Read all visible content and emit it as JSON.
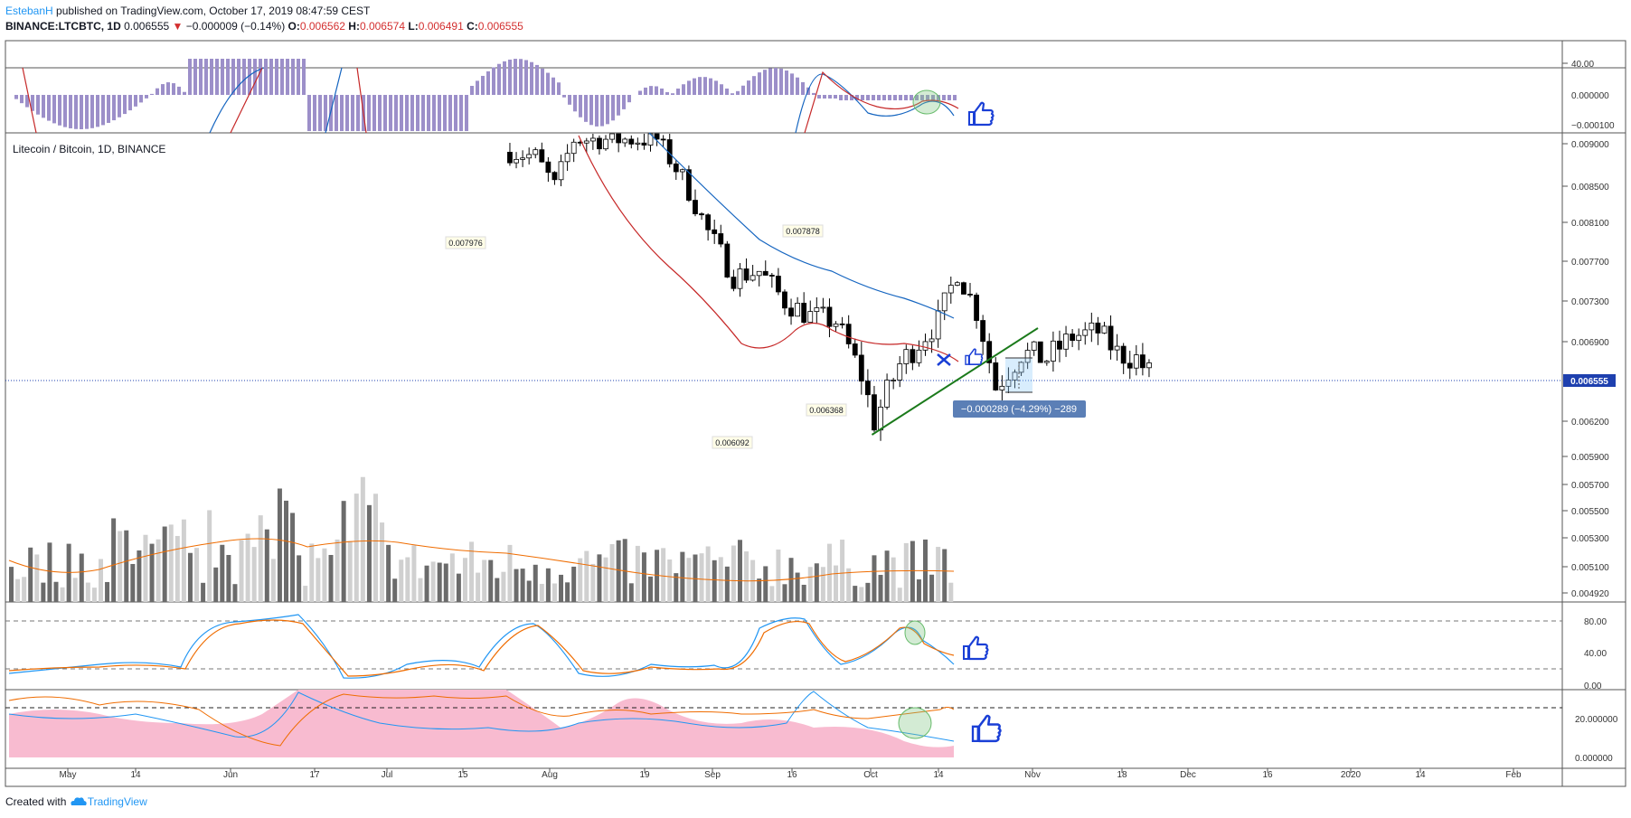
{
  "header": {
    "author": "EstebanH",
    "published": "published on TradingView.com, October 17, 2019 08:47:59 CEST",
    "symbol": "BINANCE:LTCBTC, 1D",
    "last": "0.006555",
    "arrow": "▼",
    "change": "−0.000009 (−0.14%)",
    "o_label": "O:",
    "o": "0.006562",
    "h_label": "H:",
    "h": "0.006574",
    "l_label": "L:",
    "l": "0.006491",
    "c_label": "C:",
    "c": "0.006555"
  },
  "footer": {
    "created_with": "Created with",
    "brand": "TradingView"
  },
  "colors": {
    "up": "#ffffff",
    "down": "#000000",
    "ema_fast": "#c62828",
    "ema_slow": "#1565c0",
    "trendline": "#1b7a1b",
    "price_line": "#1e40af",
    "macd_hist": "#9c8fc9",
    "rsi_fast": "#2196f3",
    "rsi_slow": "#ef6c00",
    "pink_fill": "#f8bbd0",
    "thumb": "#1a3fd6",
    "highlight_circle": "#66bb6a"
  },
  "chart_data": [
    {
      "type": "candlestick",
      "title": "Litecoin / Bitcoin, 1D, BINANCE",
      "x_ticks": [
        "May",
        "14",
        "Jun",
        "17",
        "Jul",
        "15",
        "Aug",
        "19",
        "Sep",
        "16",
        "Oct",
        "14",
        "Nov",
        "18",
        "Dec",
        "16",
        "2020",
        "14",
        "Feb"
      ],
      "y_ticks": [
        "0.009000",
        "0.008500",
        "0.008100",
        "0.007700",
        "0.007300",
        "0.006900",
        "0.006200",
        "0.005900",
        "0.005700",
        "0.005500",
        "0.005300",
        "0.005100",
        "0.004920"
      ],
      "y_range": [
        0.00488,
        0.00912
      ],
      "current_price_label": "0.006555",
      "annotations": [
        {
          "label": "0.007976",
          "x": "2019-07-15",
          "y": 0.007976
        },
        {
          "label": "0.007878",
          "x": "2019-09-16",
          "y": 0.007878
        },
        {
          "label": "0.006368",
          "x": "2019-09-22",
          "y": 0.006368
        },
        {
          "label": "0.006092",
          "x": "2019-09-03",
          "y": 0.006092
        }
      ],
      "measure_label": "−0.000289 (−4.29%) −289",
      "trendline": {
        "from": [
          "2019-09-03",
          0.006092
        ],
        "to": [
          "2019-10-22",
          0.00698
        ]
      },
      "closes_sampled": [
        [
          "2019-07-08",
          0.0089
        ],
        [
          "2019-07-12",
          0.00885
        ],
        [
          "2019-07-15",
          0.0085
        ],
        [
          "2019-07-18",
          0.00905
        ],
        [
          "2019-07-31",
          0.00905
        ],
        [
          "2019-08-04",
          0.0086
        ],
        [
          "2019-08-08",
          0.008
        ],
        [
          "2019-08-12",
          0.00755
        ],
        [
          "2019-08-16",
          0.0076
        ],
        [
          "2019-08-20",
          0.0073
        ],
        [
          "2019-08-24",
          0.00715
        ],
        [
          "2019-08-28",
          0.0071
        ],
        [
          "2019-09-01",
          0.0066
        ],
        [
          "2019-09-03",
          0.0062
        ],
        [
          "2019-09-07",
          0.0067
        ],
        [
          "2019-09-10",
          0.0069
        ],
        [
          "2019-09-13",
          0.0071
        ],
        [
          "2019-09-16",
          0.0076
        ],
        [
          "2019-09-19",
          0.0072
        ],
        [
          "2019-09-22",
          0.0065
        ],
        [
          "2019-09-26",
          0.0068
        ],
        [
          "2019-09-30",
          0.00675
        ],
        [
          "2019-10-04",
          0.00695
        ],
        [
          "2019-10-08",
          0.007
        ],
        [
          "2019-10-11",
          0.0068
        ],
        [
          "2019-10-14",
          0.00675
        ],
        [
          "2019-10-17",
          0.006555
        ]
      ],
      "volume_ma_level": 0.0051
    },
    {
      "type": "line",
      "name": "MACD panel",
      "y_ticks": [
        "40.00",
        "0.000000",
        "−0.000100"
      ]
    },
    {
      "type": "line",
      "name": "Stochastic RSI panel",
      "y_ticks": [
        "80.00",
        "40.00",
        "0.00"
      ]
    },
    {
      "type": "area",
      "name": "DMI / ADX panel",
      "y_ticks": [
        "20.000000",
        "0.000000"
      ]
    }
  ]
}
